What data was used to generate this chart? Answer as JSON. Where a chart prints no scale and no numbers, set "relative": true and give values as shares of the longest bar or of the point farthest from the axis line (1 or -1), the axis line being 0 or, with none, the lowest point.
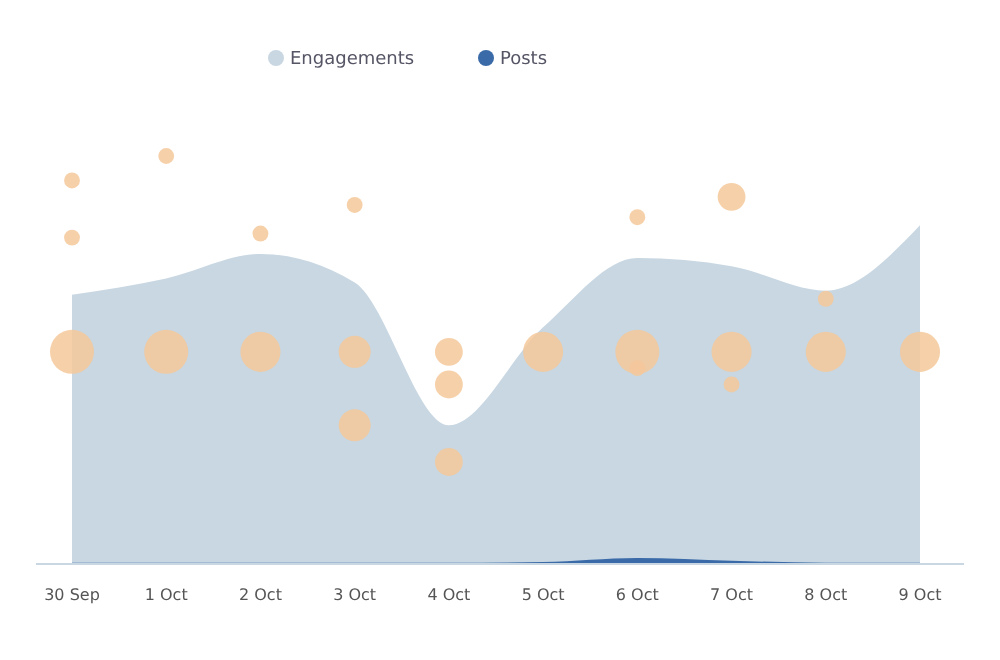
{
  "chart_data": {
    "type": "area",
    "relative": true,
    "legend": "top",
    "categories": [
      "30 Sep",
      "1 Oct",
      "2 Oct",
      "3 Oct",
      "4 Oct",
      "5 Oct",
      "6 Oct",
      "7 Oct",
      "8 Oct",
      "9 Oct"
    ],
    "series": [
      {
        "name": "Engagements",
        "color": "#c8d7e2",
        "values": [
          0.66,
          0.7,
          0.76,
          0.69,
          0.34,
          0.58,
          0.75,
          0.73,
          0.67,
          0.83
        ]
      },
      {
        "name": "Posts",
        "color": "#3a6aa8",
        "values": [
          0.003,
          0.003,
          0.003,
          0.003,
          0.003,
          0.005,
          0.015,
          0.008,
          0.003,
          0.003
        ]
      },
      {
        "type": "bubble",
        "color": "#f5c89a",
        "x": [
          "30 Sep",
          "30 Sep",
          "30 Sep",
          "1 Oct",
          "1 Oct",
          "2 Oct",
          "2 Oct",
          "3 Oct",
          "3 Oct",
          "3 Oct",
          "4 Oct",
          "4 Oct",
          "4 Oct",
          "5 Oct",
          "6 Oct",
          "6 Oct",
          "6 Oct",
          "7 Oct",
          "7 Oct",
          "7 Oct",
          "8 Oct",
          "8 Oct",
          "9 Oct"
        ],
        "values": [
          0.52,
          0.8,
          0.94,
          0.52,
          1,
          0.52,
          0.81,
          0.52,
          0.34,
          0.88,
          0.52,
          0.44,
          0.25,
          0.52,
          0.52,
          0.48,
          0.85,
          0.52,
          0.44,
          0.9,
          0.52,
          0.65,
          0.52
        ],
        "sizes": [
          1,
          0.13,
          0.13,
          1,
          0.13,
          0.83,
          0.13,
          0.53,
          0.53,
          0.13,
          0.4,
          0.4,
          0.4,
          0.83,
          1,
          0.13,
          0.13,
          0.83,
          0.13,
          0.4,
          0.83,
          0.13,
          0.83
        ]
      }
    ]
  }
}
